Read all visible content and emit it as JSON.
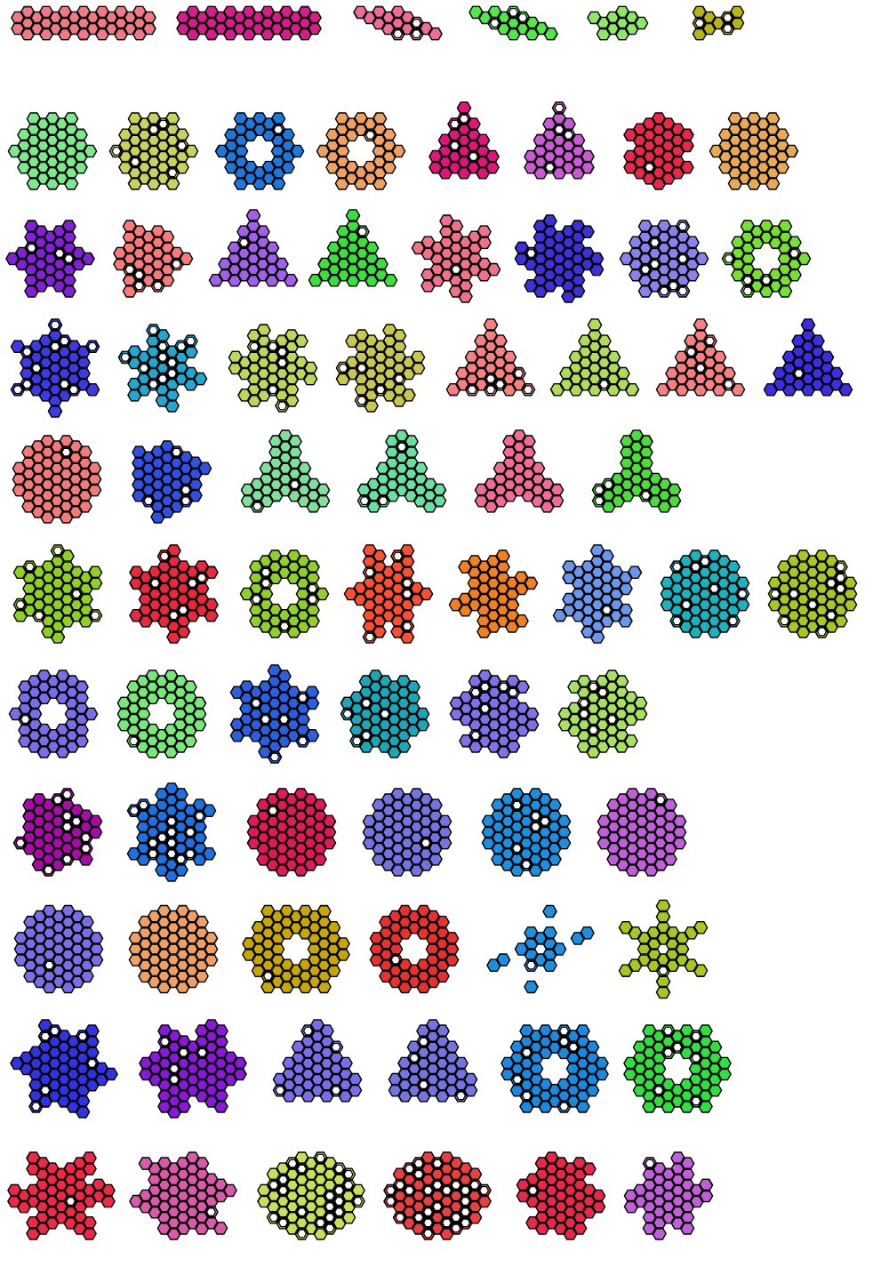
{
  "gallery": {
    "rows": [
      {
        "items": [
          {
            "shape": "band",
            "color": "#f07a84",
            "holes": 0
          },
          {
            "shape": "band",
            "color": "#d51e8a",
            "holes": 0
          },
          {
            "shape": "parallelogram",
            "color": "#f06a9a",
            "holes": 3
          },
          {
            "shape": "parallelogram",
            "color": "#52e84a",
            "holes": 3
          },
          {
            "shape": "blob",
            "color": "#8ee866",
            "holes": 0
          },
          {
            "shape": "blob",
            "color": "#b8b412",
            "holes": 4
          }
        ]
      },
      {
        "items": [
          {
            "shape": "hexagon",
            "color": "#7cea8c",
            "holes": 0
          },
          {
            "shape": "hexagon",
            "color": "#c8d25c",
            "holes": 6
          },
          {
            "shape": "ring",
            "color": "#1e78dc",
            "holes": 1
          },
          {
            "shape": "ring",
            "color": "#f0a060",
            "holes": 1
          },
          {
            "shape": "triangle-ring",
            "color": "#e0147a",
            "holes": 4
          },
          {
            "shape": "triangle-ring",
            "color": "#c85ad2",
            "holes": 4
          },
          {
            "shape": "pinwheel",
            "color": "#e8284a",
            "holes": 1
          },
          {
            "shape": "hexagon",
            "color": "#e8aa52",
            "holes": 0
          }
        ]
      },
      {
        "items": [
          {
            "shape": "pinwheel",
            "color": "#8220d6",
            "holes": 3
          },
          {
            "shape": "blob",
            "color": "#f87a7a",
            "holes": 6
          },
          {
            "shape": "triangle-ring",
            "color": "#a060e8",
            "holes": 1
          },
          {
            "shape": "triangle-ring",
            "color": "#3ce03c",
            "holes": 1
          },
          {
            "shape": "star",
            "color": "#f07288",
            "holes": 1
          },
          {
            "shape": "star",
            "color": "#3c30d6",
            "holes": 1
          },
          {
            "shape": "hexagon",
            "color": "#8a82ea",
            "holes": 8
          },
          {
            "shape": "ring",
            "color": "#78e030",
            "holes": 6
          }
        ]
      },
      {
        "items": [
          {
            "shape": "star",
            "color": "#3c3ae0",
            "holes": 12
          },
          {
            "shape": "star",
            "color": "#20a8d0",
            "holes": 12
          },
          {
            "shape": "star",
            "color": "#c0d658",
            "holes": 6
          },
          {
            "shape": "star",
            "color": "#c8c850",
            "holes": 6
          },
          {
            "shape": "triangle-ring",
            "color": "#f88080",
            "holes": 6
          },
          {
            "shape": "triangle-ring",
            "color": "#b0dc58",
            "holes": 1
          },
          {
            "shape": "triangle-ring",
            "color": "#f88080",
            "holes": 4
          },
          {
            "shape": "triangle-ring",
            "color": "#3a2ee0",
            "holes": 1
          }
        ]
      },
      {
        "items": [
          {
            "shape": "cube",
            "color": "#f27a7a",
            "holes": 1
          },
          {
            "shape": "blob",
            "color": "#3050e0",
            "holes": 4
          },
          {
            "shape": "tripod",
            "color": "#7ee09a",
            "holes": 3
          },
          {
            "shape": "tripod",
            "color": "#68e0a0",
            "holes": 3
          },
          {
            "shape": "tripod",
            "color": "#f06c98",
            "holes": 0
          },
          {
            "shape": "tripod",
            "color": "#4cdc3c",
            "holes": 4
          }
        ]
      },
      {
        "items": [
          {
            "shape": "star",
            "color": "#90d020",
            "holes": 6
          },
          {
            "shape": "star",
            "color": "#e8283e",
            "holes": 6
          },
          {
            "shape": "ring",
            "color": "#90d028",
            "holes": 6
          },
          {
            "shape": "star",
            "color": "#f85030",
            "holes": 6
          },
          {
            "shape": "star",
            "color": "#f08020",
            "holes": 0
          },
          {
            "shape": "star",
            "color": "#6a96ec",
            "holes": 1
          },
          {
            "shape": "hexagon",
            "color": "#18b4c0",
            "holes": 10
          },
          {
            "shape": "hexagon",
            "color": "#a8c820",
            "holes": 10
          }
        ]
      },
      {
        "items": [
          {
            "shape": "ring",
            "color": "#7a6ee8",
            "holes": 1
          },
          {
            "shape": "ring",
            "color": "#78e878",
            "holes": 1
          },
          {
            "shape": "star",
            "color": "#2a60e0",
            "holes": 6
          },
          {
            "shape": "pinwheel",
            "color": "#18a8b8",
            "holes": 6
          },
          {
            "shape": "pinwheel",
            "color": "#8070ea",
            "holes": 6
          },
          {
            "shape": "pinwheel",
            "color": "#a8e060",
            "holes": 6
          }
        ]
      },
      {
        "items": [
          {
            "shape": "blob",
            "color": "#a80ca8",
            "holes": 12
          },
          {
            "shape": "star",
            "color": "#1c72e0",
            "holes": 14
          },
          {
            "shape": "hexagon",
            "color": "#e01a5a",
            "holes": 1
          },
          {
            "shape": "hexagon",
            "color": "#7474e0",
            "holes": 1
          },
          {
            "shape": "hexagon",
            "color": "#1c90e0",
            "holes": 6
          },
          {
            "shape": "hexagon",
            "color": "#c060d8",
            "holes": 1
          }
        ]
      },
      {
        "items": [
          {
            "shape": "hexagon",
            "color": "#7a6ee8",
            "holes": 1
          },
          {
            "shape": "hexagon",
            "color": "#f0a060",
            "holes": 0
          },
          {
            "shape": "ring",
            "color": "#c8a800",
            "holes": 1
          },
          {
            "shape": "ring",
            "color": "#e83030",
            "holes": 1
          },
          {
            "shape": "snowflake",
            "color": "#1c90e0",
            "holes": 1
          },
          {
            "shape": "snowflake",
            "color": "#a8c820",
            "holes": 1
          }
        ]
      },
      {
        "items": [
          {
            "shape": "pinwheel",
            "color": "#3034e0",
            "holes": 6
          },
          {
            "shape": "pinwheel",
            "color": "#8a18d8",
            "holes": 6
          },
          {
            "shape": "triangle-ring",
            "color": "#7a6ee8",
            "holes": 4
          },
          {
            "shape": "triangle-ring",
            "color": "#7474e0",
            "holes": 4
          },
          {
            "shape": "ring",
            "color": "#1a8ae0",
            "holes": 7
          },
          {
            "shape": "ring",
            "color": "#30e040",
            "holes": 7
          }
        ]
      },
      {
        "items": [
          {
            "shape": "star",
            "color": "#f02848",
            "holes": 1
          },
          {
            "shape": "star",
            "color": "#d85aa8",
            "holes": 1
          },
          {
            "shape": "hexagon",
            "color": "#c8e058",
            "holes": 30
          },
          {
            "shape": "hexagon",
            "color": "#e84040",
            "holes": 30
          },
          {
            "shape": "pinwheel",
            "color": "#e8284a",
            "holes": 1
          },
          {
            "shape": "star",
            "color": "#c060d8",
            "holes": 1
          }
        ]
      }
    ]
  }
}
